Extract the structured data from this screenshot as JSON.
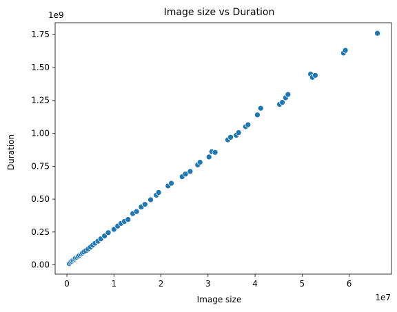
{
  "chart_data": {
    "type": "scatter",
    "title": "Image size vs Duration",
    "xlabel": "Image size",
    "ylabel": "Duration",
    "x_offset_label": "1e7",
    "y_offset_label": "1e9",
    "xlim": [
      -0.25,
      6.9
    ],
    "ylim": [
      -0.07,
      1.84
    ],
    "x_ticks": [
      0,
      1,
      2,
      3,
      4,
      5,
      6
    ],
    "x_tick_labels": [
      "0",
      "1",
      "2",
      "3",
      "4",
      "5",
      "6"
    ],
    "y_ticks": [
      0.0,
      0.25,
      0.5,
      0.75,
      1.0,
      1.25,
      1.5,
      1.75
    ],
    "y_tick_labels": [
      "0.00",
      "0.25",
      "0.50",
      "0.75",
      "1.00",
      "1.25",
      "1.50",
      "1.75"
    ],
    "grid": false,
    "point_color": "#1f77b4",
    "series": [
      {
        "name": "Duration",
        "x": [
          0.05,
          0.08,
          0.1,
          0.13,
          0.16,
          0.18,
          0.21,
          0.24,
          0.27,
          0.3,
          0.33,
          0.36,
          0.4,
          0.45,
          0.5,
          0.55,
          0.6,
          0.66,
          0.72,
          0.8,
          0.88,
          1.0,
          1.08,
          1.15,
          1.22,
          1.3,
          1.4,
          1.48,
          1.58,
          1.66,
          1.78,
          1.9,
          1.95,
          2.15,
          2.22,
          2.45,
          2.52,
          2.62,
          2.78,
          2.83,
          3.02,
          3.08,
          3.15,
          3.42,
          3.48,
          3.6,
          3.65,
          3.8,
          3.85,
          4.05,
          4.12,
          4.52,
          4.58,
          4.65,
          4.7,
          5.18,
          5.22,
          5.28,
          5.88,
          5.92,
          6.6
        ],
        "y": [
          0.01,
          0.02,
          0.028,
          0.036,
          0.044,
          0.052,
          0.058,
          0.066,
          0.074,
          0.082,
          0.09,
          0.098,
          0.108,
          0.12,
          0.135,
          0.15,
          0.165,
          0.18,
          0.198,
          0.22,
          0.245,
          0.27,
          0.295,
          0.315,
          0.33,
          0.345,
          0.39,
          0.405,
          0.44,
          0.46,
          0.495,
          0.53,
          0.55,
          0.6,
          0.62,
          0.67,
          0.69,
          0.71,
          0.76,
          0.78,
          0.82,
          0.86,
          0.855,
          0.95,
          0.97,
          0.985,
          1.005,
          1.05,
          1.065,
          1.14,
          1.19,
          1.22,
          1.235,
          1.27,
          1.295,
          1.45,
          1.425,
          1.44,
          1.61,
          1.63,
          1.76
        ]
      }
    ]
  }
}
